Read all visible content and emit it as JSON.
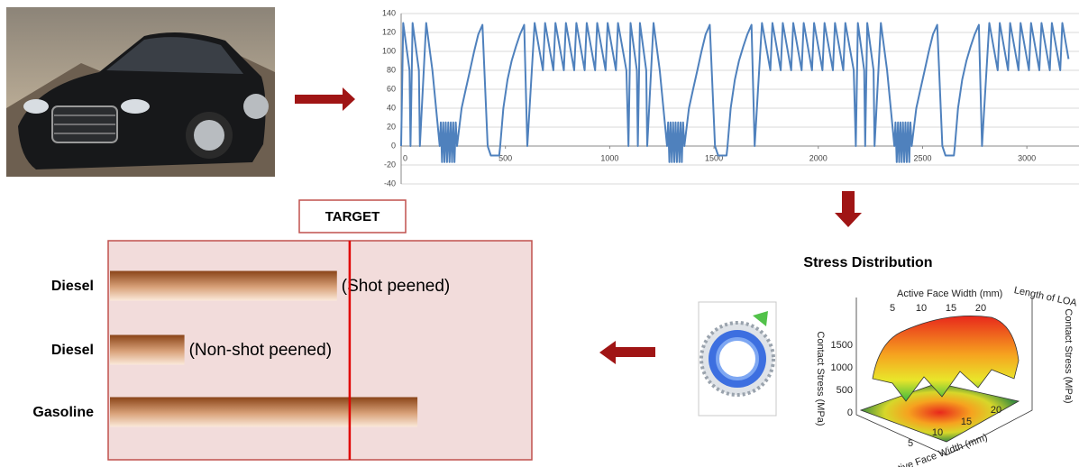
{
  "chart_data": [
    {
      "type": "line",
      "x": [
        0,
        10,
        40,
        45,
        55,
        85,
        90,
        120,
        150,
        185,
        190,
        196,
        202,
        208,
        214,
        220,
        226,
        232,
        238,
        244,
        250,
        256,
        262,
        268,
        290,
        310,
        330,
        350,
        370,
        390,
        415,
        430,
        470,
        475,
        490,
        510,
        530,
        550,
        570,
        590,
        605,
        640,
        680,
        690,
        730,
        740,
        780,
        790,
        830,
        840,
        880,
        890,
        930,
        940,
        980,
        990,
        1030,
        1040,
        1080,
        1090,
        1100,
        1130,
        1135,
        1145,
        1175,
        1180,
        1210,
        1240,
        1275,
        1280,
        1286,
        1292,
        1298,
        1304,
        1310,
        1316,
        1322,
        1328,
        1334,
        1340,
        1346,
        1352,
        1358,
        1380,
        1400,
        1420,
        1440,
        1460,
        1480,
        1505,
        1520,
        1560,
        1565,
        1580,
        1600,
        1620,
        1640,
        1660,
        1680,
        1695,
        1730,
        1770,
        1780,
        1820,
        1830,
        1870,
        1880,
        1920,
        1930,
        1970,
        1980,
        2020,
        2030,
        2070,
        2080,
        2120,
        2130,
        2170,
        2180,
        2190,
        2220,
        2225,
        2235,
        2265,
        2270,
        2300,
        2330,
        2365,
        2370,
        2376,
        2382,
        2388,
        2394,
        2400,
        2406,
        2412,
        2418,
        2424,
        2430,
        2436,
        2442,
        2448,
        2470,
        2490,
        2510,
        2530,
        2550,
        2570,
        2595,
        2610,
        2650,
        2655,
        2670,
        2690,
        2710,
        2730,
        2750,
        2770,
        2785,
        2820,
        2860,
        2870,
        2910,
        2920,
        2960,
        2970,
        3010,
        3020,
        3060,
        3070,
        3110,
        3120,
        3160,
        3170,
        3200
      ],
      "values": [
        0,
        130,
        80,
        0,
        130,
        80,
        0,
        130,
        80,
        0,
        25,
        -17,
        25,
        -17,
        25,
        -17,
        25,
        -17,
        25,
        -17,
        25,
        -17,
        25,
        0,
        40,
        60,
        80,
        100,
        118,
        128,
        0,
        -10,
        -10,
        0,
        40,
        70,
        90,
        105,
        118,
        128,
        0,
        130,
        80,
        130,
        80,
        130,
        80,
        130,
        80,
        130,
        80,
        130,
        80,
        130,
        80,
        130,
        80,
        130,
        80,
        0,
        130,
        80,
        0,
        130,
        80,
        0,
        130,
        80,
        0,
        25,
        -17,
        25,
        -17,
        25,
        -17,
        25,
        -17,
        25,
        -17,
        25,
        -17,
        25,
        0,
        40,
        60,
        80,
        100,
        118,
        128,
        0,
        -10,
        -10,
        0,
        40,
        70,
        90,
        105,
        118,
        128,
        0,
        130,
        80,
        130,
        80,
        130,
        80,
        130,
        80,
        130,
        80,
        130,
        80,
        130,
        80,
        130,
        80,
        130,
        80,
        0,
        130,
        80,
        0,
        130,
        80,
        0,
        130,
        80,
        0,
        25,
        -17,
        25,
        -17,
        25,
        -17,
        25,
        -17,
        25,
        -17,
        25,
        -17,
        25,
        0,
        40,
        60,
        80,
        100,
        118,
        128,
        0,
        -10,
        -10,
        0,
        40,
        70,
        90,
        105,
        118,
        128,
        0,
        130,
        80,
        130,
        80,
        130,
        80,
        130,
        80,
        130,
        80,
        130,
        80,
        130,
        80,
        130,
        92
      ],
      "color": "#4f81bd",
      "xlim": [
        0,
        3250
      ],
      "xticks": [
        0,
        500,
        1000,
        1500,
        2000,
        2500,
        3000
      ],
      "ylim": [
        -40,
        140
      ],
      "yticks": [
        -40,
        -20,
        0,
        20,
        40,
        60,
        80,
        100,
        120,
        140
      ],
      "grid": true
    },
    {
      "type": "bar",
      "orientation": "horizontal",
      "categories": [
        "Diesel",
        "Diesel",
        "Gasoline"
      ],
      "values": [
        54,
        18,
        73
      ],
      "bar_notes": [
        "(Shot peened)",
        "(Non-shot peened)"
      ],
      "target": {
        "label": "TARGET",
        "value": 57
      },
      "xlim": [
        0,
        100
      ]
    }
  ],
  "stress_title": "Stress Distribution",
  "stress_plot": {
    "top_axis_label": "Active Face Width (mm)",
    "top_ticks": [
      "5",
      "10",
      "15",
      "20"
    ],
    "right_top_label": "Length of LOA (mm)",
    "left_axis_label": "Contact Stress (MPa)",
    "left_ticks": [
      "1500",
      "1000",
      "500",
      "0"
    ],
    "right_axis_label": "Contact Stress (MPa)",
    "bottom_axis_label": "Active Face Width (mm)",
    "bottom_ticks": [
      "5",
      "10",
      "15",
      "20"
    ]
  }
}
